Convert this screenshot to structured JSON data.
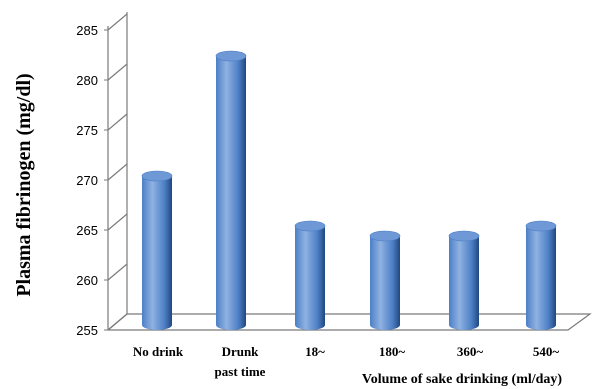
{
  "chart_data": {
    "type": "bar",
    "style": "3d-cylinder",
    "categories": [
      [
        "No drink"
      ],
      [
        "Drunk",
        "past time"
      ],
      [
        "18~"
      ],
      [
        "180~"
      ],
      [
        "360~"
      ],
      [
        "540~"
      ]
    ],
    "values": [
      270,
      282,
      265,
      264,
      264,
      265
    ],
    "ylabel": "Plasma fibrinogen (mg/dl)",
    "xlabel": "Volume of sake drinking (ml/day)",
    "ylim": [
      255,
      285
    ],
    "yticks": [
      255,
      260,
      265,
      270,
      275,
      280,
      285
    ],
    "grid": false,
    "legend": "none",
    "colors": {
      "bar_light": "#8fb2e2",
      "bar_mid": "#4d7fc6",
      "bar_dark": "#21487f",
      "bar_top": "#6f98d6",
      "wall": "#7a7a7a"
    }
  }
}
